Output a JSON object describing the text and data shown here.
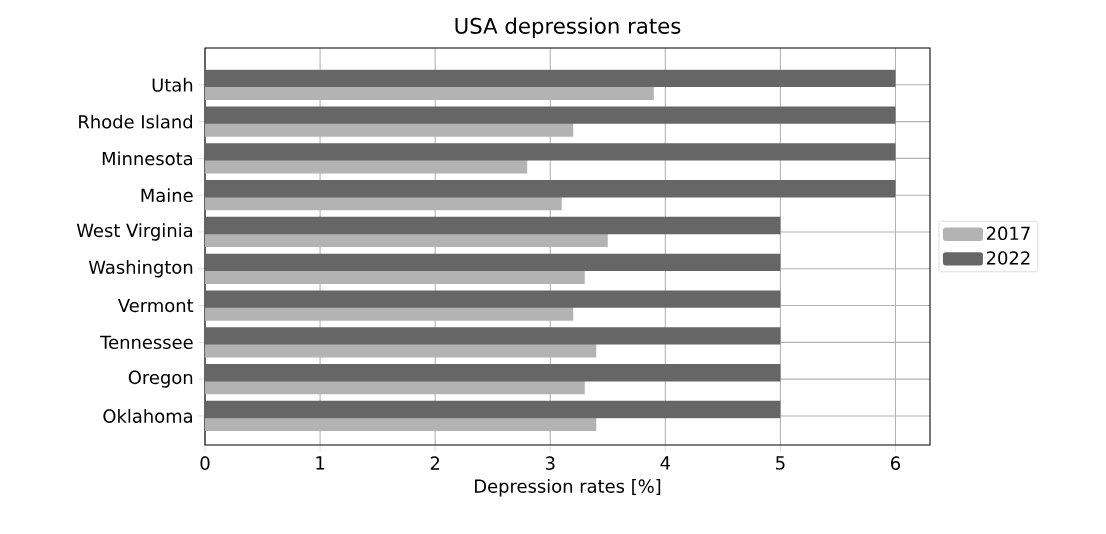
{
  "chart_data": {
    "type": "bar",
    "orientation": "horizontal",
    "title": "USA depression rates",
    "xlabel": "Depression rates [%]",
    "categories": [
      "Utah",
      "Rhode Island",
      "Minnesota",
      "Maine",
      "West Virginia",
      "Washington",
      "Vermont",
      "Tennessee",
      "Oregon",
      "Oklahoma"
    ],
    "series": [
      {
        "name": "2017",
        "color": "#b3b3b3",
        "values": [
          3.9,
          3.2,
          2.8,
          3.1,
          3.5,
          3.3,
          3.2,
          3.4,
          3.3,
          3.4
        ]
      },
      {
        "name": "2022",
        "color": "#666666",
        "values": [
          6,
          6,
          6,
          6,
          5,
          5,
          5,
          5,
          5,
          5
        ]
      }
    ],
    "xlim": [
      0,
      6.3
    ],
    "xticks": [
      0,
      1,
      2,
      3,
      4,
      5,
      6
    ],
    "grid": true,
    "legend": "right"
  }
}
